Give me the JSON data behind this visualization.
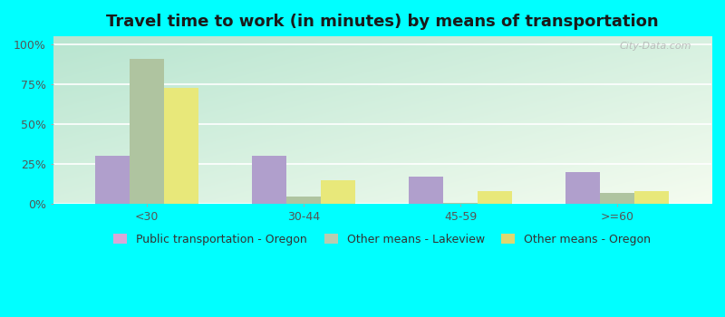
{
  "title": "Travel time to work (in minutes) by means of transportation",
  "categories": [
    "<30",
    "30-44",
    "45-59",
    ">=60"
  ],
  "series": {
    "Public transportation - Oregon": [
      30,
      30,
      17,
      20
    ],
    "Other means - Lakeview": [
      91,
      5,
      1,
      7
    ],
    "Other means - Oregon": [
      73,
      15,
      8,
      8
    ]
  },
  "colors": {
    "Public transportation - Oregon": "#b09fcc",
    "Other means - Lakeview": "#afc4a0",
    "Other means - Oregon": "#e8e87a"
  },
  "legend_marker_colors": {
    "Public transportation - Oregon": "#d8a8d8",
    "Other means - Lakeview": "#b8ccb0",
    "Other means - Oregon": "#ddd870"
  },
  "background_color": "#00ffff",
  "ytick_labels": [
    "0%",
    "25%",
    "50%",
    "75%",
    "100%"
  ],
  "ytick_values": [
    0,
    25,
    50,
    75,
    100
  ],
  "ylim": [
    0,
    105
  ],
  "bar_width": 0.22,
  "title_fontsize": 13,
  "tick_fontsize": 9,
  "legend_fontsize": 9,
  "watermark": "City-Data.com"
}
